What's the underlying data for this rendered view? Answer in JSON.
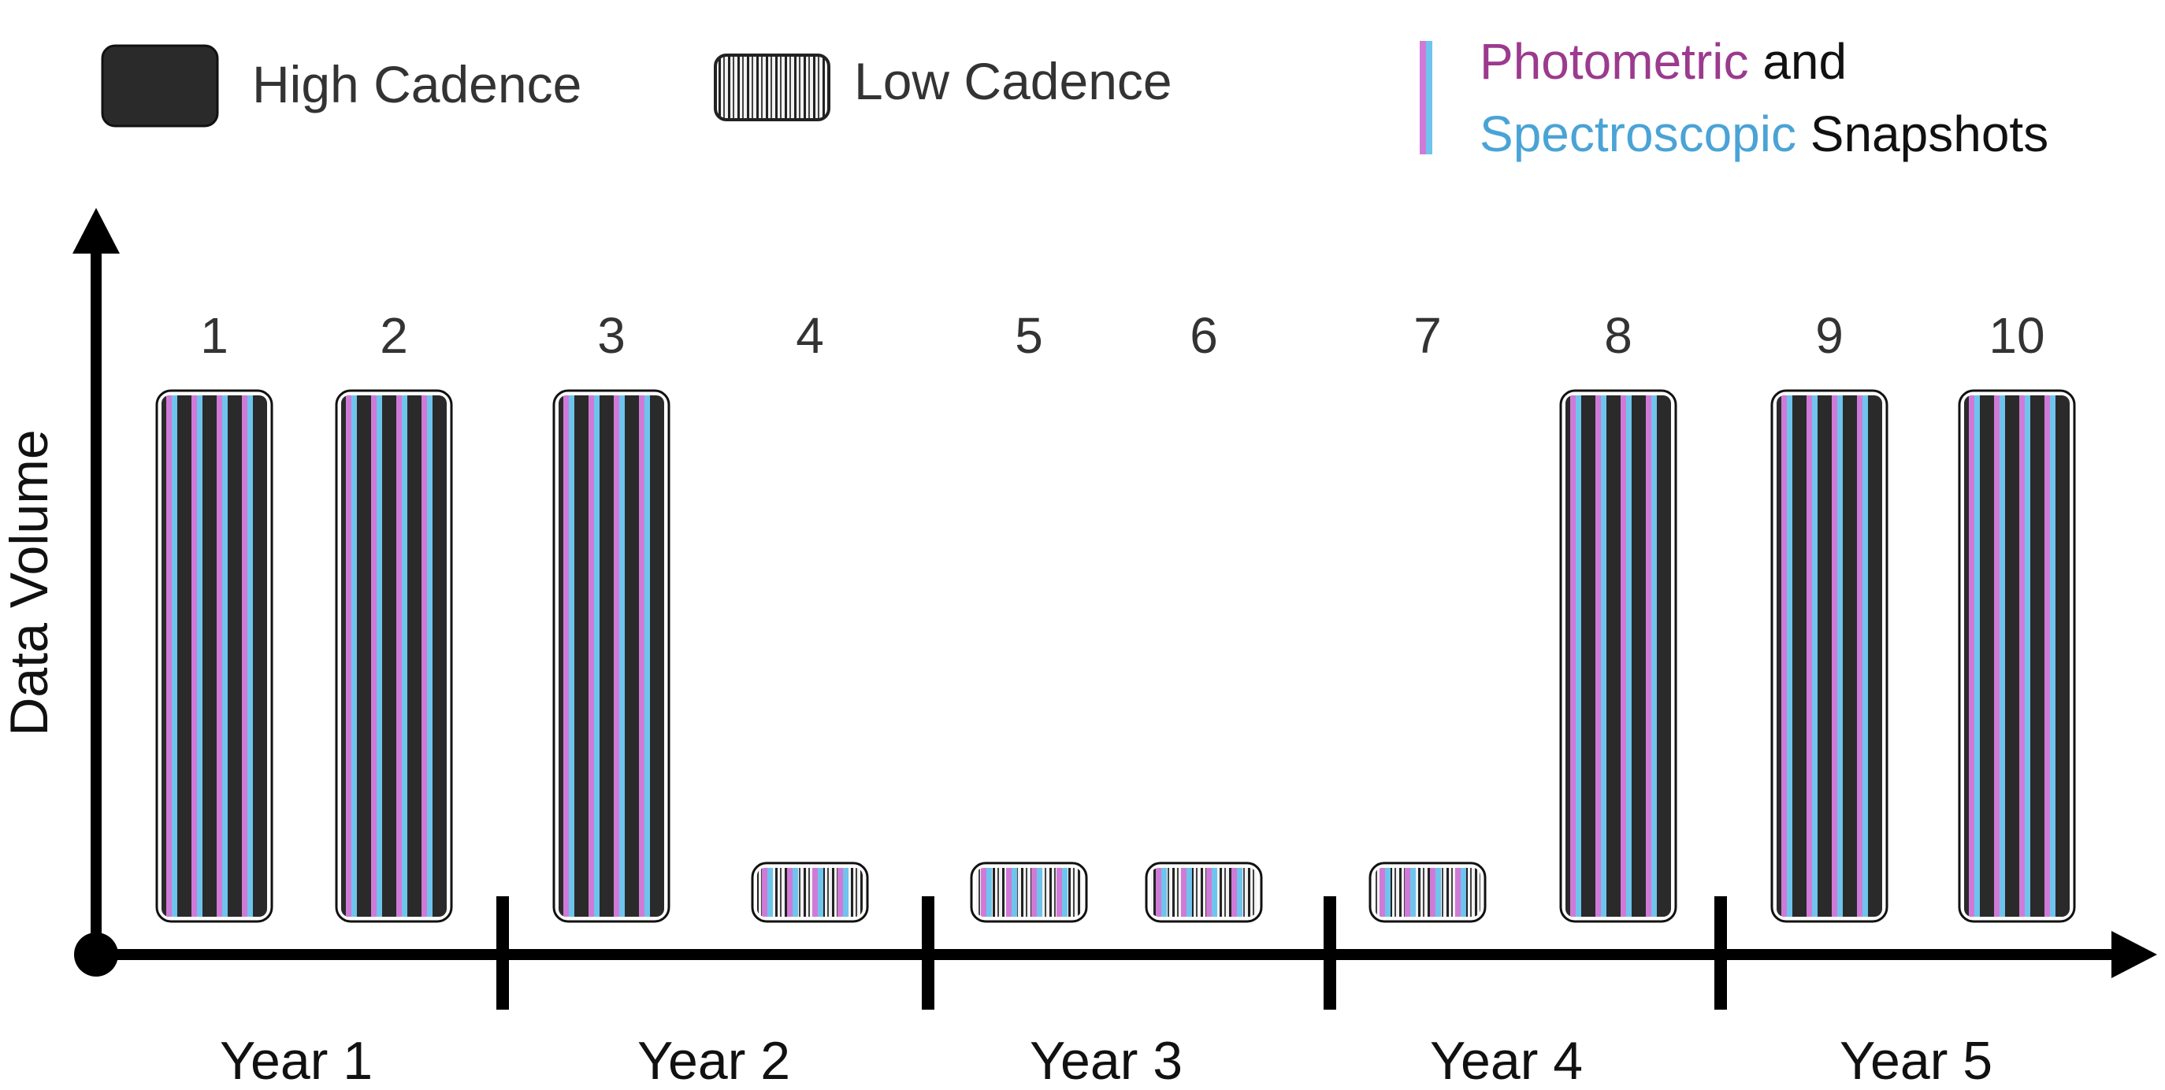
{
  "legend": {
    "high_label": "High Cadence",
    "low_label": "Low Cadence",
    "photometric": "Photometric",
    "and": "and",
    "spectroscopic": "Spectroscopic",
    "snapshots": "Snapshots"
  },
  "axis": {
    "ylabel": "Data Volume"
  },
  "years": [
    "Year 1",
    "Year 2",
    "Year 3",
    "Year 4",
    "Year 5"
  ],
  "colors": {
    "bar": "#2a2a2a",
    "photometric": "#9b3a8e",
    "spectroscopic": "#4aa3d6",
    "stripe_pink": "#d07ad8",
    "stripe_blue": "#6ec4ec",
    "axis": "#000000",
    "text": "#333333"
  },
  "chart_data": {
    "type": "bar",
    "categories": [
      "1",
      "2",
      "3",
      "4",
      "5",
      "6",
      "7",
      "8",
      "9",
      "10"
    ],
    "series": [
      {
        "name": "Data Volume",
        "values": [
          1,
          1,
          1,
          0.11,
          0.11,
          0.11,
          0.11,
          1,
          1,
          1
        ],
        "cadence": [
          "high",
          "high",
          "high",
          "low",
          "low",
          "low",
          "low",
          "high",
          "high",
          "high"
        ]
      }
    ],
    "xlabel": "",
    "ylabel": "Data Volume",
    "ylim": [
      0,
      1.05
    ]
  }
}
